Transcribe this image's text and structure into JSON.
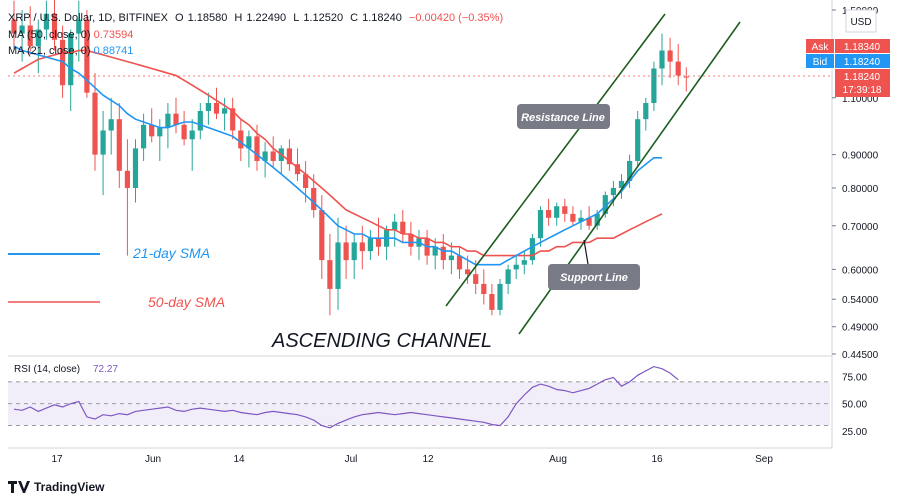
{
  "header": {
    "symbol": "XRP / U.S. Dollar, 1D, BITFINEX",
    "open_label": "O",
    "open": "1.18580",
    "high_label": "H",
    "high": "1.22490",
    "low_label": "L",
    "low": "1.12520",
    "close_label": "C",
    "close": "1.18240",
    "change": "−0.00420 (−0.35%)"
  },
  "indicators": {
    "ma50": {
      "label": "MA (50, close, 0)",
      "value": "0.73594"
    },
    "ma21": {
      "label": "MA (21, close, 0)",
      "value": "0.88741"
    }
  },
  "currency": "USD",
  "ask": {
    "label": "Ask",
    "value": "1.18340"
  },
  "bid": {
    "label": "Bid",
    "value": "1.18240"
  },
  "last": {
    "value": "1.18240",
    "countdown": "17:39:18"
  },
  "annotations": {
    "resistance": "Resistance Line",
    "support": "Support Line",
    "sma21": "21-day SMA",
    "sma50": "50-day SMA",
    "channel": "ASCENDING CHANNEL"
  },
  "rsi": {
    "label": "RSI (14, close)",
    "value": "72.27"
  },
  "branding": "TradingView",
  "colors": {
    "up": "#26a69a",
    "down": "#ef5350",
    "sma21": "#2196f3",
    "sma50": "#ef5350",
    "channel": "#1b5e20",
    "rsi_line": "#7e57c2"
  },
  "chart_data": {
    "type": "candlestick",
    "x_ticks": [
      "17",
      "Jun",
      "14",
      "Jul",
      "12",
      "Aug",
      "16",
      "Sep"
    ],
    "y_ticks": [
      "1.50000",
      "1.10000",
      "0.90000",
      "0.80000",
      "0.70000",
      "0.60000",
      "0.54000",
      "0.49000",
      "0.44500"
    ],
    "y_scale": "log",
    "ylim": [
      0.445,
      1.5
    ],
    "rsi_ticks": [
      "75.00",
      "50.00",
      "25.00"
    ],
    "rsi_ylim": [
      15,
      90
    ],
    "candles": [
      {
        "o": 1.45,
        "h": 1.55,
        "l": 1.3,
        "c": 1.38
      },
      {
        "o": 1.38,
        "h": 1.5,
        "l": 1.25,
        "c": 1.42
      },
      {
        "o": 1.42,
        "h": 1.52,
        "l": 1.28,
        "c": 1.32
      },
      {
        "o": 1.32,
        "h": 1.45,
        "l": 1.2,
        "c": 1.4
      },
      {
        "o": 1.4,
        "h": 1.55,
        "l": 1.35,
        "c": 1.48
      },
      {
        "o": 1.48,
        "h": 1.6,
        "l": 1.3,
        "c": 1.35
      },
      {
        "o": 1.35,
        "h": 1.42,
        "l": 1.1,
        "c": 1.15
      },
      {
        "o": 1.15,
        "h": 1.4,
        "l": 1.05,
        "c": 1.38
      },
      {
        "o": 1.38,
        "h": 1.55,
        "l": 1.25,
        "c": 1.45
      },
      {
        "o": 1.45,
        "h": 1.5,
        "l": 1.1,
        "c": 1.12
      },
      {
        "o": 1.12,
        "h": 1.2,
        "l": 0.85,
        "c": 0.9
      },
      {
        "o": 0.9,
        "h": 1.05,
        "l": 0.78,
        "c": 0.98
      },
      {
        "o": 0.98,
        "h": 1.1,
        "l": 0.9,
        "c": 1.02
      },
      {
        "o": 1.02,
        "h": 1.08,
        "l": 0.8,
        "c": 0.85
      },
      {
        "o": 0.85,
        "h": 0.95,
        "l": 0.63,
        "c": 0.8
      },
      {
        "o": 0.8,
        "h": 0.95,
        "l": 0.76,
        "c": 0.92
      },
      {
        "o": 0.92,
        "h": 1.04,
        "l": 0.88,
        "c": 1.0
      },
      {
        "o": 1.0,
        "h": 1.06,
        "l": 0.94,
        "c": 0.96
      },
      {
        "o": 0.96,
        "h": 1.02,
        "l": 0.88,
        "c": 0.99
      },
      {
        "o": 0.99,
        "h": 1.08,
        "l": 0.92,
        "c": 1.04
      },
      {
        "o": 1.04,
        "h": 1.1,
        "l": 0.97,
        "c": 1.0
      },
      {
        "o": 1.0,
        "h": 1.05,
        "l": 0.93,
        "c": 0.95
      },
      {
        "o": 0.95,
        "h": 1.02,
        "l": 0.85,
        "c": 0.98
      },
      {
        "o": 0.98,
        "h": 1.08,
        "l": 0.95,
        "c": 1.05
      },
      {
        "o": 1.05,
        "h": 1.12,
        "l": 1.0,
        "c": 1.08
      },
      {
        "o": 1.08,
        "h": 1.14,
        "l": 1.02,
        "c": 1.04
      },
      {
        "o": 1.04,
        "h": 1.1,
        "l": 0.98,
        "c": 1.06
      },
      {
        "o": 1.06,
        "h": 1.1,
        "l": 0.95,
        "c": 0.98
      },
      {
        "o": 0.98,
        "h": 1.02,
        "l": 0.88,
        "c": 0.92
      },
      {
        "o": 0.92,
        "h": 0.98,
        "l": 0.86,
        "c": 0.96
      },
      {
        "o": 0.96,
        "h": 1.0,
        "l": 0.85,
        "c": 0.88
      },
      {
        "o": 0.88,
        "h": 0.94,
        "l": 0.83,
        "c": 0.91
      },
      {
        "o": 0.91,
        "h": 0.96,
        "l": 0.86,
        "c": 0.88
      },
      {
        "o": 0.88,
        "h": 0.93,
        "l": 0.84,
        "c": 0.92
      },
      {
        "o": 0.92,
        "h": 0.95,
        "l": 0.85,
        "c": 0.87
      },
      {
        "o": 0.87,
        "h": 0.92,
        "l": 0.82,
        "c": 0.84
      },
      {
        "o": 0.84,
        "h": 0.88,
        "l": 0.76,
        "c": 0.8
      },
      {
        "o": 0.8,
        "h": 0.84,
        "l": 0.72,
        "c": 0.74
      },
      {
        "o": 0.74,
        "h": 0.78,
        "l": 0.58,
        "c": 0.62
      },
      {
        "o": 0.62,
        "h": 0.68,
        "l": 0.51,
        "c": 0.56
      },
      {
        "o": 0.56,
        "h": 0.72,
        "l": 0.52,
        "c": 0.66
      },
      {
        "o": 0.66,
        "h": 0.7,
        "l": 0.58,
        "c": 0.62
      },
      {
        "o": 0.62,
        "h": 0.68,
        "l": 0.58,
        "c": 0.66
      },
      {
        "o": 0.66,
        "h": 0.7,
        "l": 0.6,
        "c": 0.64
      },
      {
        "o": 0.64,
        "h": 0.69,
        "l": 0.62,
        "c": 0.67
      },
      {
        "o": 0.67,
        "h": 0.72,
        "l": 0.63,
        "c": 0.65
      },
      {
        "o": 0.65,
        "h": 0.7,
        "l": 0.62,
        "c": 0.69
      },
      {
        "o": 0.69,
        "h": 0.73,
        "l": 0.65,
        "c": 0.71
      },
      {
        "o": 0.71,
        "h": 0.74,
        "l": 0.66,
        "c": 0.68
      },
      {
        "o": 0.68,
        "h": 0.71,
        "l": 0.63,
        "c": 0.65
      },
      {
        "o": 0.65,
        "h": 0.69,
        "l": 0.62,
        "c": 0.67
      },
      {
        "o": 0.67,
        "h": 0.69,
        "l": 0.61,
        "c": 0.63
      },
      {
        "o": 0.63,
        "h": 0.67,
        "l": 0.6,
        "c": 0.65
      },
      {
        "o": 0.65,
        "h": 0.68,
        "l": 0.6,
        "c": 0.62
      },
      {
        "o": 0.62,
        "h": 0.66,
        "l": 0.59,
        "c": 0.63
      },
      {
        "o": 0.63,
        "h": 0.65,
        "l": 0.58,
        "c": 0.6
      },
      {
        "o": 0.6,
        "h": 0.63,
        "l": 0.57,
        "c": 0.59
      },
      {
        "o": 0.59,
        "h": 0.62,
        "l": 0.55,
        "c": 0.57
      },
      {
        "o": 0.57,
        "h": 0.6,
        "l": 0.53,
        "c": 0.55
      },
      {
        "o": 0.55,
        "h": 0.57,
        "l": 0.51,
        "c": 0.52
      },
      {
        "o": 0.52,
        "h": 0.58,
        "l": 0.51,
        "c": 0.57
      },
      {
        "o": 0.57,
        "h": 0.61,
        "l": 0.55,
        "c": 0.6
      },
      {
        "o": 0.6,
        "h": 0.63,
        "l": 0.58,
        "c": 0.61
      },
      {
        "o": 0.61,
        "h": 0.64,
        "l": 0.59,
        "c": 0.62
      },
      {
        "o": 0.62,
        "h": 0.68,
        "l": 0.61,
        "c": 0.67
      },
      {
        "o": 0.67,
        "h": 0.75,
        "l": 0.65,
        "c": 0.74
      },
      {
        "o": 0.74,
        "h": 0.77,
        "l": 0.7,
        "c": 0.72
      },
      {
        "o": 0.72,
        "h": 0.76,
        "l": 0.7,
        "c": 0.75
      },
      {
        "o": 0.75,
        "h": 0.77,
        "l": 0.71,
        "c": 0.73
      },
      {
        "o": 0.73,
        "h": 0.75,
        "l": 0.7,
        "c": 0.71
      },
      {
        "o": 0.71,
        "h": 0.74,
        "l": 0.69,
        "c": 0.72
      },
      {
        "o": 0.72,
        "h": 0.75,
        "l": 0.69,
        "c": 0.7
      },
      {
        "o": 0.7,
        "h": 0.74,
        "l": 0.69,
        "c": 0.73
      },
      {
        "o": 0.73,
        "h": 0.79,
        "l": 0.72,
        "c": 0.78
      },
      {
        "o": 0.78,
        "h": 0.82,
        "l": 0.75,
        "c": 0.8
      },
      {
        "o": 0.8,
        "h": 0.84,
        "l": 0.77,
        "c": 0.82
      },
      {
        "o": 0.82,
        "h": 0.9,
        "l": 0.8,
        "c": 0.88
      },
      {
        "o": 0.88,
        "h": 1.05,
        "l": 0.86,
        "c": 1.02
      },
      {
        "o": 1.02,
        "h": 1.1,
        "l": 0.98,
        "c": 1.08
      },
      {
        "o": 1.08,
        "h": 1.25,
        "l": 1.05,
        "c": 1.22
      },
      {
        "o": 1.22,
        "h": 1.38,
        "l": 1.15,
        "c": 1.3
      },
      {
        "o": 1.3,
        "h": 1.36,
        "l": 1.18,
        "c": 1.25
      },
      {
        "o": 1.25,
        "h": 1.33,
        "l": 1.15,
        "c": 1.19
      },
      {
        "o": 1.1858,
        "h": 1.2249,
        "l": 1.1252,
        "c": 1.1824
      }
    ],
    "sma21": [
      1.32,
      1.3,
      1.29,
      1.28,
      1.27,
      1.26,
      1.25,
      1.22,
      1.2,
      1.17,
      1.14,
      1.11,
      1.09,
      1.07,
      1.04,
      1.02,
      1.01,
      1.0,
      0.99,
      0.99,
      1.0,
      1.01,
      1.01,
      1.0,
      0.99,
      0.98,
      0.97,
      0.96,
      0.94,
      0.92,
      0.9,
      0.88,
      0.86,
      0.84,
      0.82,
      0.8,
      0.78,
      0.76,
      0.74,
      0.72,
      0.7,
      0.69,
      0.68,
      0.68,
      0.67,
      0.67,
      0.67,
      0.67,
      0.66,
      0.66,
      0.66,
      0.65,
      0.65,
      0.64,
      0.64,
      0.63,
      0.62,
      0.61,
      0.61,
      0.61,
      0.61,
      0.62,
      0.63,
      0.64,
      0.65,
      0.66,
      0.67,
      0.68,
      0.69,
      0.7,
      0.71,
      0.72,
      0.73,
      0.75,
      0.77,
      0.79,
      0.82,
      0.85,
      0.87,
      0.89,
      0.89
    ],
    "sma50": [
      1.2,
      1.22,
      1.24,
      1.26,
      1.27,
      1.28,
      1.29,
      1.29,
      1.3,
      1.3,
      1.29,
      1.28,
      1.27,
      1.26,
      1.25,
      1.24,
      1.23,
      1.22,
      1.21,
      1.2,
      1.19,
      1.17,
      1.15,
      1.13,
      1.11,
      1.09,
      1.07,
      1.05,
      1.02,
      1.0,
      0.97,
      0.95,
      0.92,
      0.9,
      0.88,
      0.86,
      0.84,
      0.82,
      0.8,
      0.78,
      0.76,
      0.74,
      0.73,
      0.72,
      0.71,
      0.7,
      0.69,
      0.69,
      0.68,
      0.68,
      0.67,
      0.67,
      0.66,
      0.66,
      0.65,
      0.65,
      0.64,
      0.64,
      0.63,
      0.63,
      0.63,
      0.63,
      0.63,
      0.63,
      0.63,
      0.64,
      0.64,
      0.65,
      0.65,
      0.66,
      0.66,
      0.66,
      0.67,
      0.67,
      0.67,
      0.68,
      0.69,
      0.7,
      0.71,
      0.72,
      0.73
    ],
    "rsi_values": [
      45,
      44,
      47,
      43,
      46,
      49,
      47,
      50,
      52,
      38,
      36,
      40,
      39,
      41,
      40,
      43,
      44,
      45,
      46,
      47,
      44,
      43,
      45,
      46,
      45,
      44,
      43,
      44,
      42,
      41,
      40,
      42,
      43,
      42,
      41,
      40,
      38,
      35,
      30,
      28,
      32,
      35,
      38,
      40,
      41,
      42,
      41,
      40,
      41,
      42,
      41,
      40,
      39,
      38,
      37,
      36,
      35,
      34,
      33,
      31,
      30,
      38,
      50,
      58,
      65,
      68,
      66,
      63,
      62,
      60,
      62,
      64,
      68,
      72,
      74,
      66,
      70,
      76,
      80,
      84,
      82,
      78,
      72
    ]
  }
}
